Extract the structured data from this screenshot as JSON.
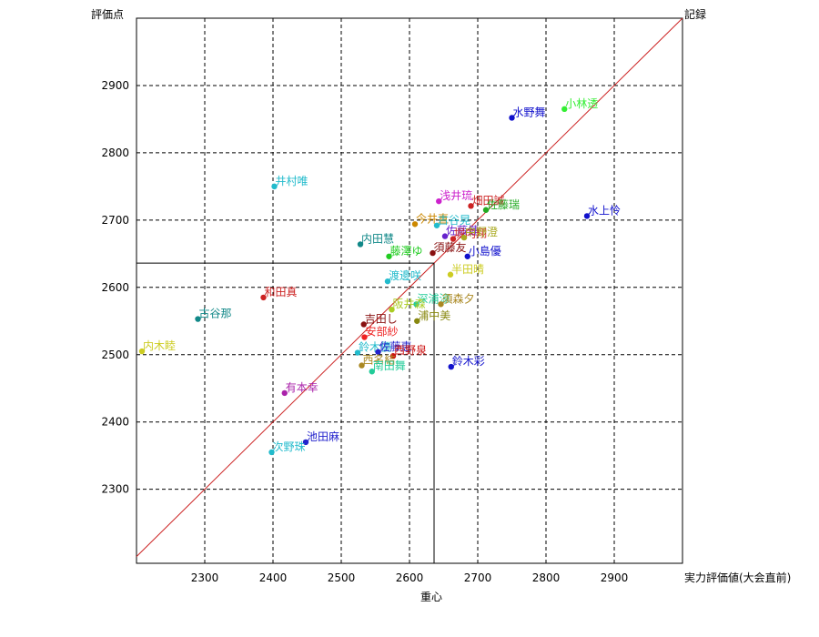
{
  "chart_data": {
    "type": "scatter",
    "y_axis_label": "評価点",
    "x_axis_label": "実力評価値(大会直前)",
    "diag_label": "記録",
    "center_label": "重心",
    "xlim": [
      2200,
      3000
    ],
    "ylim": [
      2190,
      3000
    ],
    "x_ticks": [
      2300,
      2400,
      2500,
      2600,
      2700,
      2800,
      2900
    ],
    "y_ticks": [
      2300,
      2400,
      2500,
      2600,
      2700,
      2800,
      2900
    ],
    "grid": true,
    "crosshair": {
      "x": 2636,
      "y": 2636
    },
    "points": [
      {
        "name": "小林透",
        "x": 2827,
        "y": 2865,
        "color": "#33ee33"
      },
      {
        "name": "水野舞",
        "x": 2750,
        "y": 2852,
        "color": "#1111cc"
      },
      {
        "name": "水上怜",
        "x": 2860,
        "y": 2706,
        "color": "#1111cc"
      },
      {
        "name": "井村唯",
        "x": 2402,
        "y": 2750,
        "color": "#22bbcc"
      },
      {
        "name": "浅井琉",
        "x": 2643,
        "y": 2728,
        "color": "#cc22cc"
      },
      {
        "name": "畑田誠",
        "x": 2690,
        "y": 2721,
        "color": "#cc2222"
      },
      {
        "name": "佐藤瑞",
        "x": 2712,
        "y": 2715,
        "color": "#22aa22"
      },
      {
        "name": "今井直",
        "x": 2608,
        "y": 2694,
        "color": "#cc8800"
      },
      {
        "name": "古谷晃",
        "x": 2640,
        "y": 2692,
        "color": "#22bbcc"
      },
      {
        "name": "佐藤健",
        "x": 2652,
        "y": 2676,
        "color": "#6622cc"
      },
      {
        "name": "堀内翔",
        "x": 2664,
        "y": 2672,
        "color": "#cc2222"
      },
      {
        "name": "中野澄",
        "x": 2680,
        "y": 2674,
        "color": "#aaaa22"
      },
      {
        "name": "内田慧",
        "x": 2528,
        "y": 2664,
        "color": "#118888"
      },
      {
        "name": "須藤友",
        "x": 2634,
        "y": 2651,
        "color": "#881111"
      },
      {
        "name": "藤澤ゆ",
        "x": 2570,
        "y": 2646,
        "color": "#22cc22"
      },
      {
        "name": "小島優",
        "x": 2685,
        "y": 2646,
        "color": "#1111cc"
      },
      {
        "name": "半田晴",
        "x": 2660,
        "y": 2619,
        "color": "#cccc22"
      },
      {
        "name": "渡邊咲",
        "x": 2568,
        "y": 2609,
        "color": "#22bbcc"
      },
      {
        "name": "和田真",
        "x": 2386,
        "y": 2585,
        "color": "#cc2222"
      },
      {
        "name": "深浦涼",
        "x": 2610,
        "y": 2575,
        "color": "#22cc99"
      },
      {
        "name": "阪井森",
        "x": 2574,
        "y": 2567,
        "color": "#aacc22"
      },
      {
        "name": "須森夕",
        "x": 2646,
        "y": 2575,
        "color": "#aa8822"
      },
      {
        "name": "古谷那",
        "x": 2290,
        "y": 2553,
        "color": "#118888"
      },
      {
        "name": "浦中美",
        "x": 2611,
        "y": 2550,
        "color": "#888811"
      },
      {
        "name": "吉田し",
        "x": 2533,
        "y": 2545,
        "color": "#881111"
      },
      {
        "name": "安部紗",
        "x": 2534,
        "y": 2526,
        "color": "#ee2222"
      },
      {
        "name": "内木睦",
        "x": 2208,
        "y": 2505,
        "color": "#cccc22"
      },
      {
        "name": "鈴木優",
        "x": 2524,
        "y": 2503,
        "color": "#22bbcc"
      },
      {
        "name": "佐藤恵",
        "x": 2554,
        "y": 2504,
        "color": "#2222cc"
      },
      {
        "name": "西野泉",
        "x": 2576,
        "y": 2498,
        "color": "#cc1111"
      },
      {
        "name": "鈴木彩",
        "x": 2661,
        "y": 2482,
        "color": "#1111cc"
      },
      {
        "name": "西名結",
        "x": 2530,
        "y": 2484,
        "color": "#aa8822"
      },
      {
        "name": "南田舞",
        "x": 2545,
        "y": 2475,
        "color": "#22cc99"
      },
      {
        "name": "有本幸",
        "x": 2417,
        "y": 2443,
        "color": "#aa22aa"
      },
      {
        "name": "池田麻",
        "x": 2448,
        "y": 2370,
        "color": "#2222cc"
      },
      {
        "name": "次野珠",
        "x": 2398,
        "y": 2355,
        "color": "#22bbcc"
      }
    ]
  }
}
